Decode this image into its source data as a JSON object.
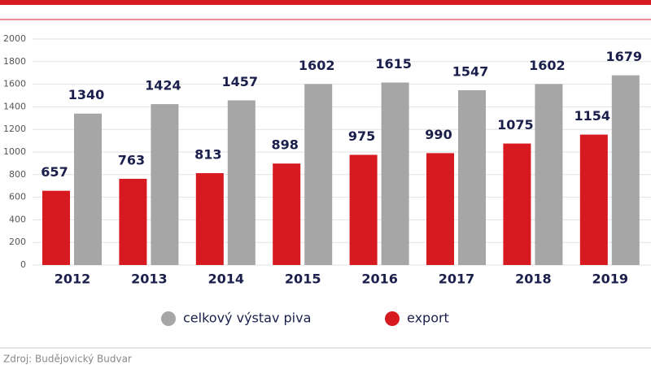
{
  "chart_data": {
    "type": "bar",
    "categories": [
      "2012",
      "2013",
      "2014",
      "2015",
      "2016",
      "2017",
      "2018",
      "2019"
    ],
    "series": [
      {
        "name": "export",
        "color": "#d71920",
        "values": [
          657,
          763,
          813,
          898,
          975,
          990,
          1075,
          1154
        ]
      },
      {
        "name": "celkový výstav piva",
        "color": "#a6a6a6",
        "values": [
          1340,
          1424,
          1457,
          1602,
          1615,
          1547,
          1602,
          1679
        ]
      }
    ],
    "ylim": [
      0,
      2000
    ],
    "yticks": [
      0,
      200,
      400,
      600,
      800,
      1000,
      1200,
      1400,
      1600,
      1800,
      2000
    ],
    "grid": true,
    "source": "Zdroj: Budějovický Budvar"
  }
}
